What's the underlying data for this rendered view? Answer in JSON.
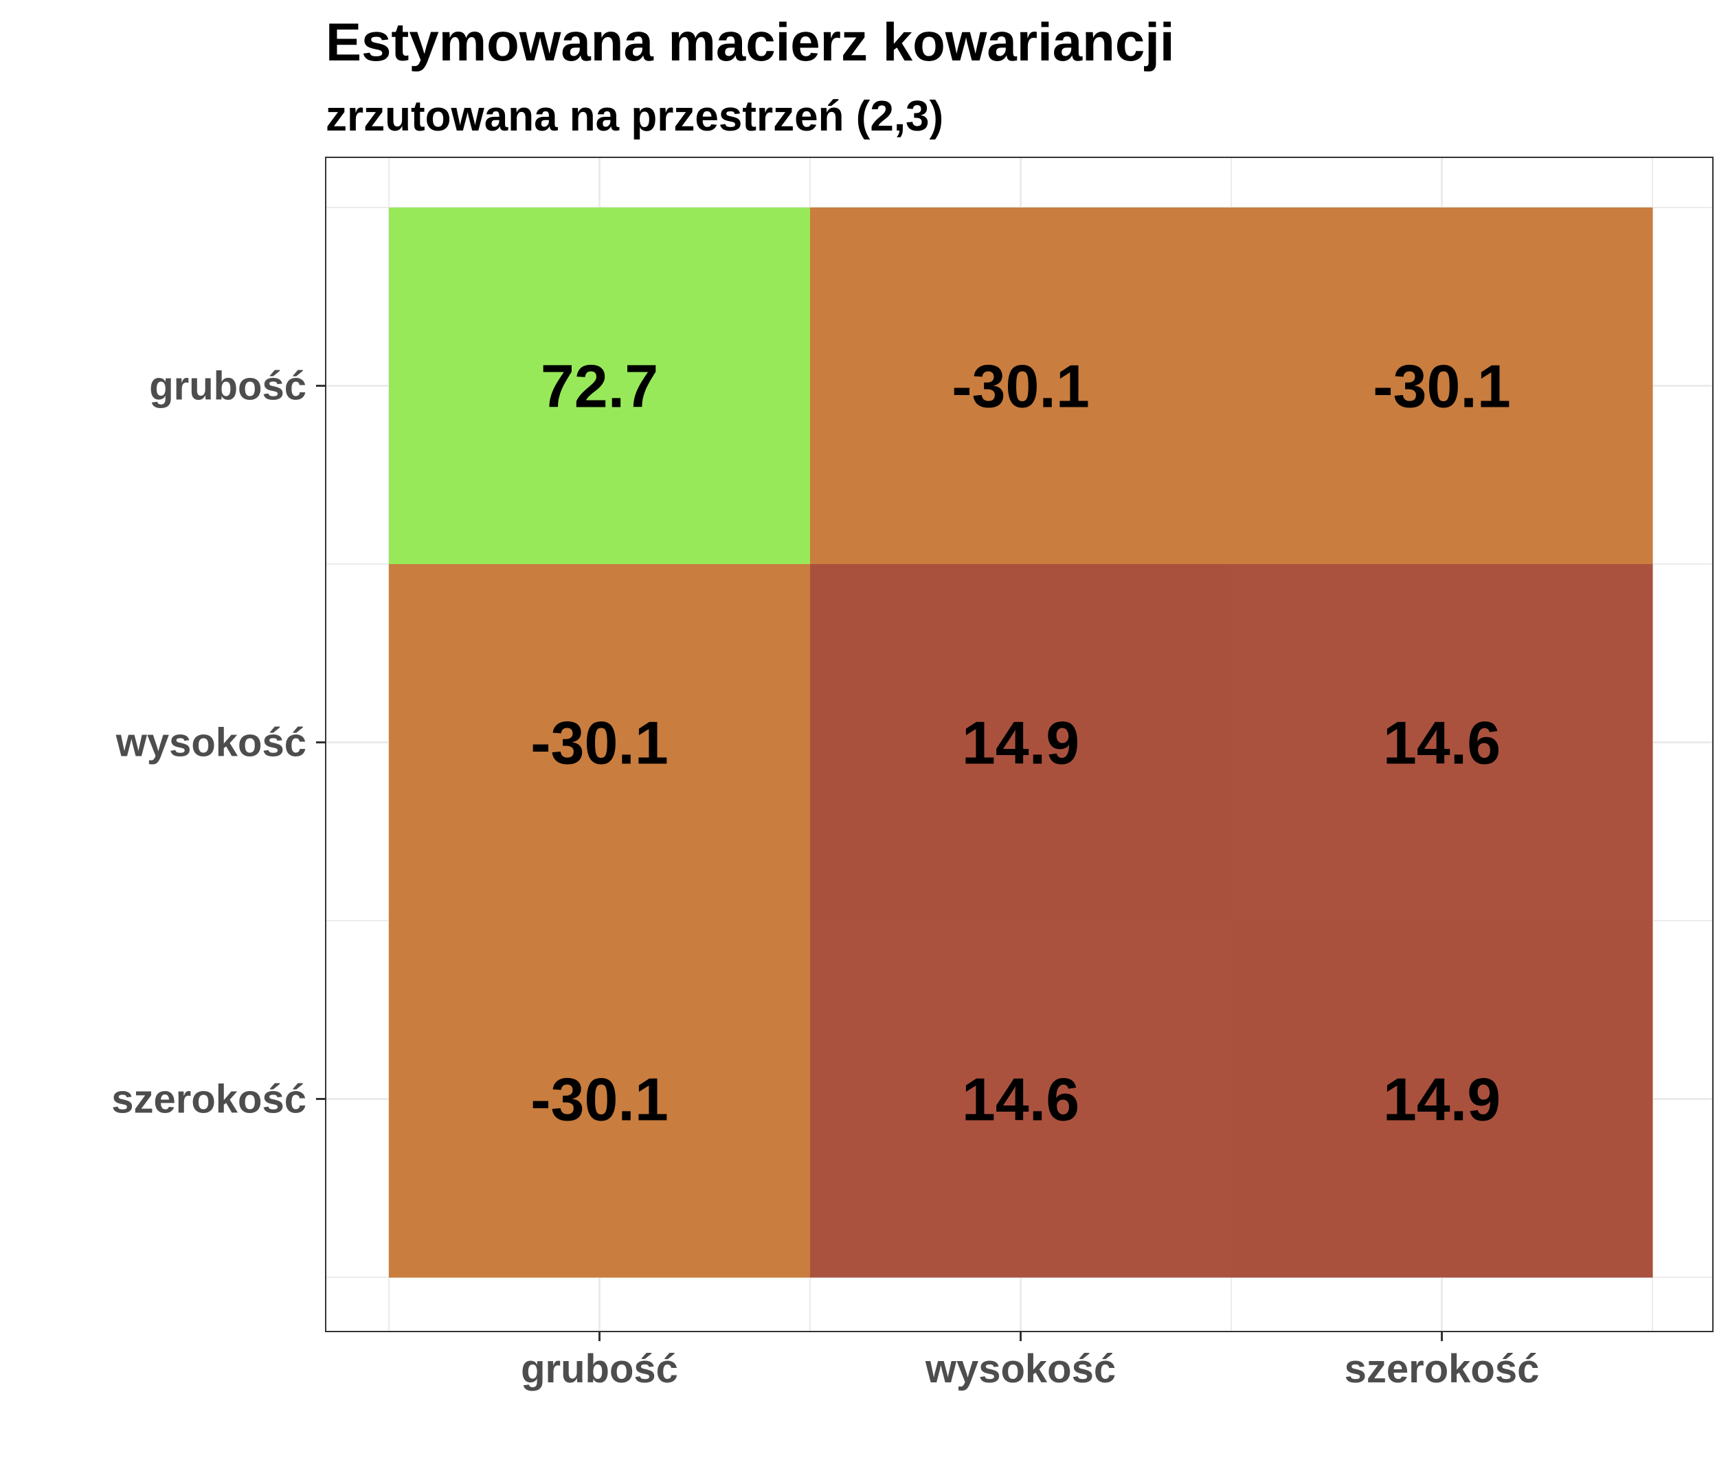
{
  "chart_data": {
    "type": "heatmap",
    "title": "Estymowana macierz kowariancji",
    "subtitle": "zrzutowana na przestrzeń (2,3)",
    "xlabel": "",
    "ylabel": "",
    "x_categories": [
      "grubość",
      "wysokość",
      "szerokość"
    ],
    "y_categories": [
      "grubość",
      "wysokość",
      "szerokość"
    ],
    "values": [
      [
        "72.7",
        "-30.1",
        "-30.1"
      ],
      [
        "-30.1",
        "14.9",
        "14.6"
      ],
      [
        "-30.1",
        "14.6",
        "14.9"
      ]
    ],
    "grid": true,
    "legend": "none",
    "colors": {
      "high": "#98e95a",
      "negative": "#c97d3e",
      "low_14_9": "#aa513e",
      "low_14_6": "#ab523f",
      "grid": "#ebebeb",
      "panel_border": "#333333",
      "tick_text": "#4d4d4d"
    }
  }
}
